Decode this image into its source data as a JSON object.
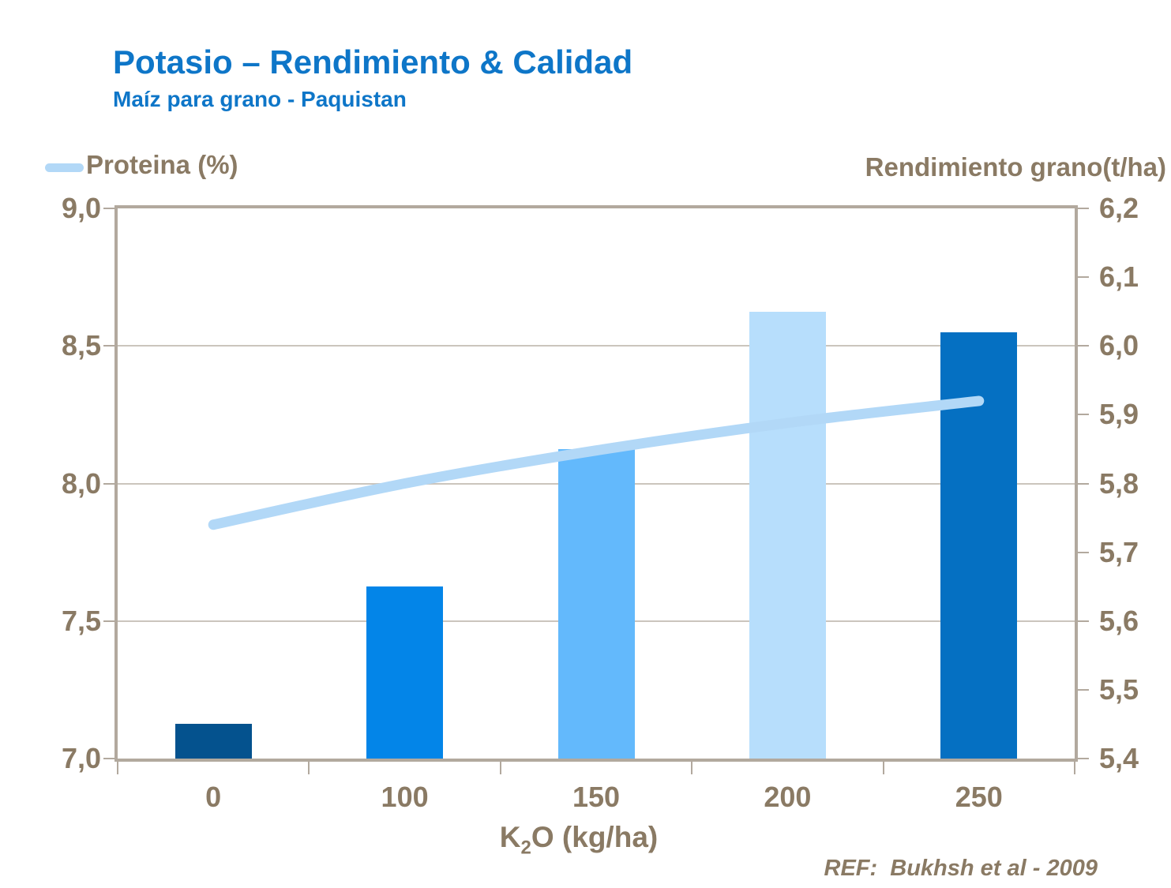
{
  "slide": {
    "title": "Potasio – Rendimiento & Calidad",
    "subtitle": "Maíz para grano - Paquistan",
    "reference": "REF:  Bukhsh et al - 2009"
  },
  "legend": {
    "left_series_label": "Proteina (%)",
    "right_series_label": "Rendimiento grano(t/ha)"
  },
  "x_axis": {
    "title_pre": "K",
    "title_sub": "2",
    "title_post": "O (kg/ha)"
  },
  "chart_data": {
    "type": "bar",
    "title": "Potasio – Rendimiento & Calidad / Maíz para grano - Paquistan",
    "categories": [
      "0",
      "100",
      "150",
      "200",
      "250"
    ],
    "series": [
      {
        "name": "Rendimiento grano (t/ha)",
        "type": "bar",
        "axis": "right",
        "values": [
          5.45,
          5.65,
          5.85,
          6.05,
          6.02
        ]
      },
      {
        "name": "Proteina (%)",
        "type": "line",
        "axis": "left",
        "values": [
          7.85,
          8.0,
          8.12,
          8.22,
          8.3
        ]
      }
    ],
    "left_axis": {
      "label": "Proteina (%)",
      "min": 7.0,
      "max": 9.0,
      "tick_labels": [
        "9,0",
        "8,5",
        "8,0",
        "7,5",
        "7,0"
      ]
    },
    "right_axis": {
      "label": "Rendimiento grano(t/ha)",
      "min": 5.4,
      "max": 6.2,
      "tick_labels": [
        "6,2",
        "6,1",
        "6,0",
        "5,9",
        "5,8",
        "5,7",
        "5,6",
        "5,5",
        "5,4"
      ]
    },
    "xlabel": "K2O (kg/ha)",
    "grid": "horizontal gridlines at 0.5 steps of left axis",
    "legend_position": "top",
    "source": "REF: Bukhsh et al - 2009"
  },
  "colors": {
    "title_blue": "#0e76c8",
    "text_taupe": "#8a7a64",
    "axis_frame": "#b2a99e",
    "gridline": "#cbc5bd",
    "bar_colors": [
      "#04528e",
      "#0385e8",
      "#63b9fc",
      "#b7defc",
      "#0570c2"
    ],
    "line_color": "#b2d8f7"
  }
}
